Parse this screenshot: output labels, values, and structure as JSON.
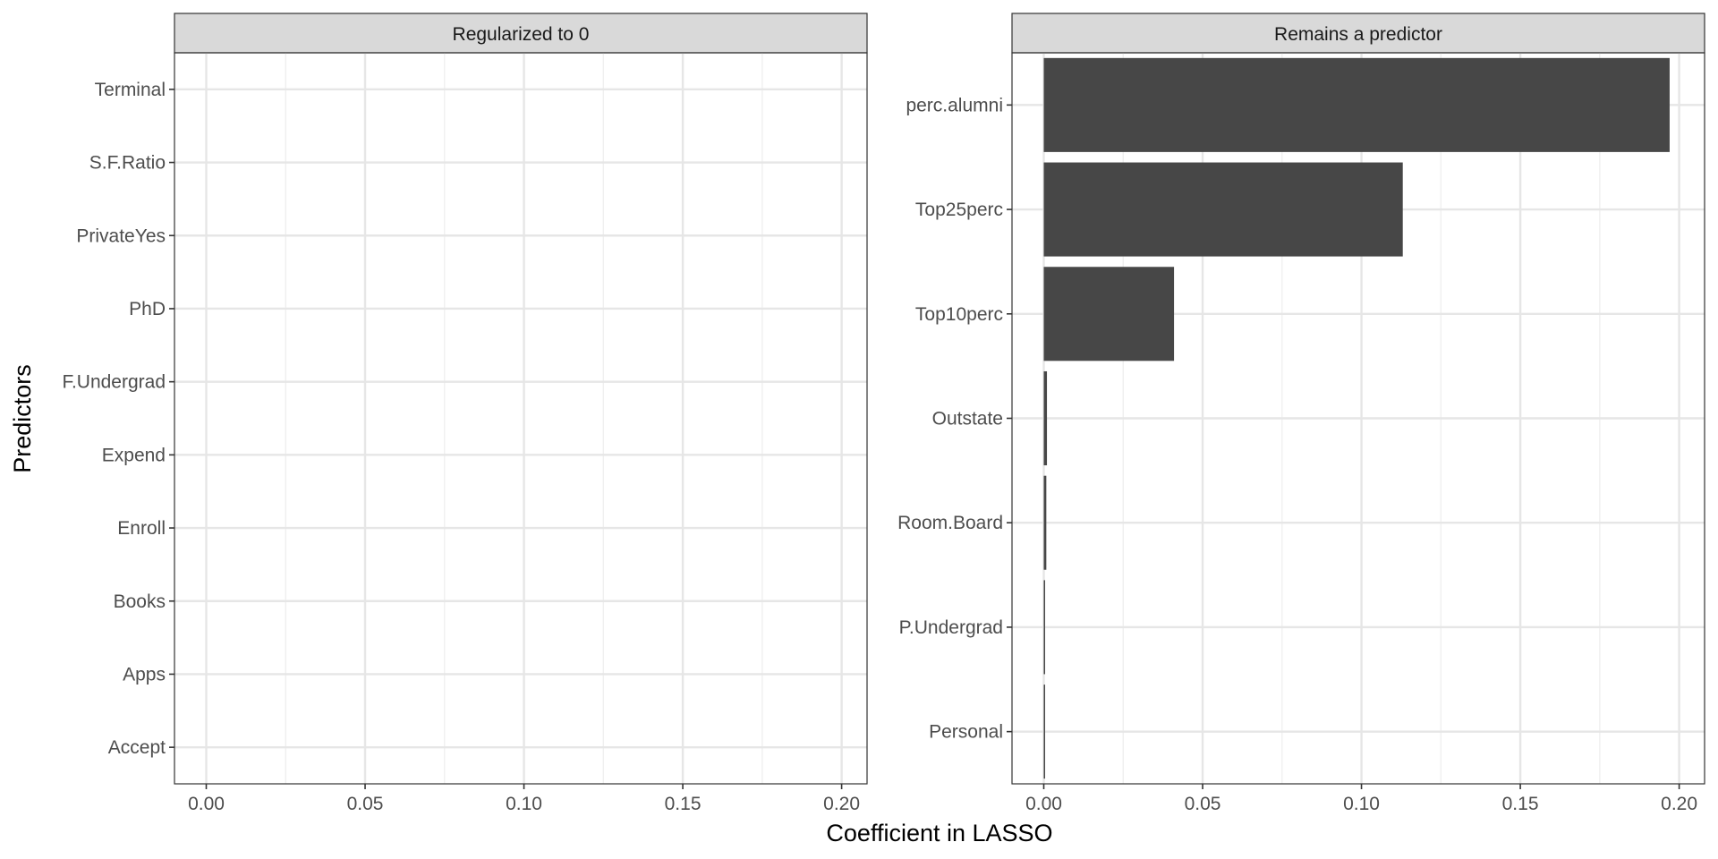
{
  "chart_data": {
    "type": "bar",
    "orientation": "horizontal",
    "facet_by": "status",
    "xlabel": "Coefficient in LASSO",
    "ylabel": "Predictors",
    "xlim": [
      -0.01,
      0.208
    ],
    "x_ticks": [
      0.0,
      0.05,
      0.1,
      0.15,
      0.2
    ],
    "x_tick_labels": [
      "0.00",
      "0.05",
      "0.10",
      "0.15",
      "0.20"
    ],
    "grid": true,
    "bar_color": "#474747",
    "panels": [
      {
        "title": "Regularized to 0",
        "categories": [
          "Terminal",
          "S.F.Ratio",
          "PrivateYes",
          "PhD",
          "F.Undergrad",
          "Expend",
          "Enroll",
          "Books",
          "Apps",
          "Accept"
        ],
        "values": [
          0,
          0,
          0,
          0,
          0,
          0,
          0,
          0,
          0,
          0
        ]
      },
      {
        "title": "Remains a predictor",
        "categories": [
          "perc.alumni",
          "Top25perc",
          "Top10perc",
          "Outstate",
          "Room.Board",
          "P.Undergrad",
          "Personal"
        ],
        "values": [
          0.197,
          0.113,
          0.041,
          0.001,
          0.0008,
          0.0003,
          0.0002
        ]
      }
    ]
  }
}
